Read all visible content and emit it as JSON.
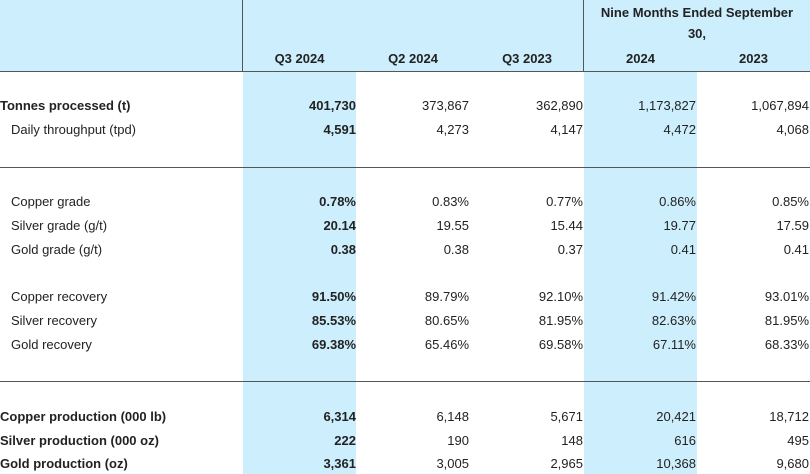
{
  "table": {
    "group_header": "Nine Months Ended September",
    "group_header_cont": "30,",
    "columns": [
      "Q3 2024",
      "Q2 2024",
      "Q3 2023",
      "2024",
      "2023"
    ],
    "sections": [
      {
        "rows": [
          {
            "label": "Tonnes processed (t)",
            "bold": true,
            "indent": false,
            "values": [
              "401,730",
              "373,867",
              "362,890",
              "1,173,827",
              "1,067,894"
            ]
          },
          {
            "label": "Daily throughput (tpd)",
            "bold": false,
            "indent": true,
            "values": [
              "4,591",
              "4,273",
              "4,147",
              "4,472",
              "4,068"
            ]
          }
        ]
      },
      {
        "rows": [
          {
            "label": "Copper grade",
            "bold": false,
            "indent": true,
            "values": [
              "0.78%",
              "0.83%",
              "0.77%",
              "0.86%",
              "0.85%"
            ]
          },
          {
            "label": "Silver grade (g/t)",
            "bold": false,
            "indent": true,
            "values": [
              "20.14",
              "19.55",
              "15.44",
              "19.77",
              "17.59"
            ]
          },
          {
            "label": "Gold grade (g/t)",
            "bold": false,
            "indent": true,
            "values": [
              "0.38",
              "0.38",
              "0.37",
              "0.41",
              "0.41"
            ]
          },
          {
            "label": "Copper recovery",
            "bold": false,
            "indent": true,
            "values": [
              "91.50%",
              "89.79%",
              "92.10%",
              "91.42%",
              "93.01%"
            ]
          },
          {
            "label": "Silver recovery",
            "bold": false,
            "indent": true,
            "values": [
              "85.53%",
              "80.65%",
              "81.95%",
              "82.63%",
              "81.95%"
            ]
          },
          {
            "label": "Gold recovery",
            "bold": false,
            "indent": true,
            "values": [
              "69.38%",
              "65.46%",
              "69.58%",
              "67.11%",
              "68.33%"
            ]
          }
        ]
      },
      {
        "rows": [
          {
            "label": "Copper production (000 lb)",
            "bold": true,
            "indent": false,
            "values": [
              "6,314",
              "6,148",
              "5,671",
              "20,421",
              "18,712"
            ]
          },
          {
            "label": "Silver production (000 oz)",
            "bold": true,
            "indent": false,
            "values": [
              "222",
              "190",
              "148",
              "616",
              "495"
            ]
          },
          {
            "label": "Gold production (oz)",
            "bold": true,
            "indent": false,
            "values": [
              "3,361",
              "3,005",
              "2,965",
              "10,368",
              "9,680"
            ]
          }
        ]
      }
    ]
  },
  "colors": {
    "highlight": "#cdeefc",
    "rule": "#555555",
    "text": "#222222"
  }
}
